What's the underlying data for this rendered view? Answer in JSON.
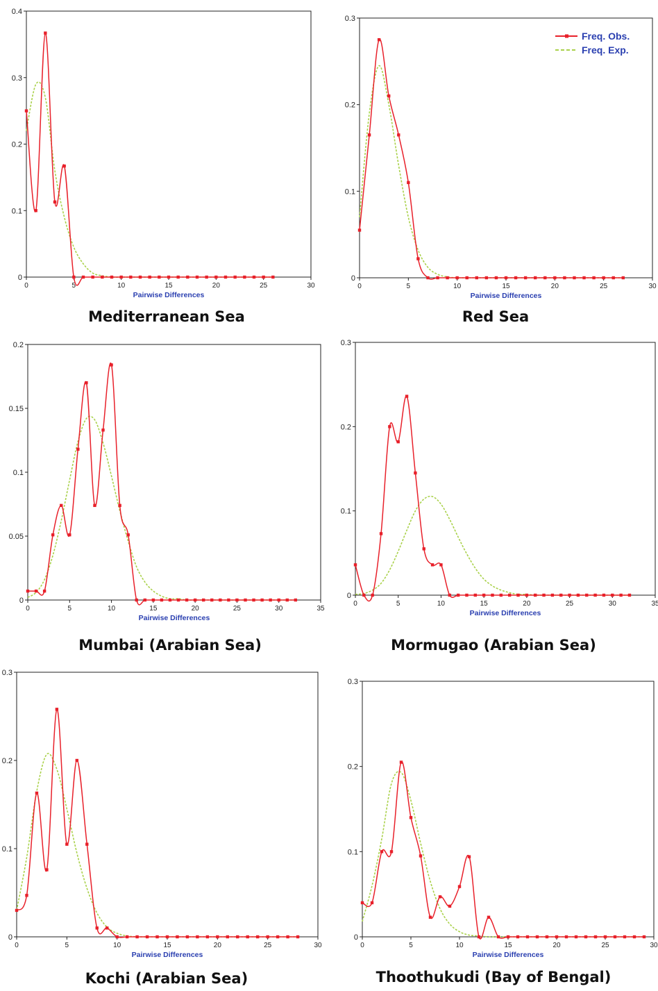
{
  "chart_data": [
    {
      "type": "line",
      "title": "Mediterranean Sea",
      "xlabel": "Pairwise Differences",
      "xlim": [
        0,
        30
      ],
      "ylim": [
        0,
        0.4
      ],
      "xticks": [
        0,
        5,
        10,
        15,
        20,
        25,
        30
      ],
      "yticks": [
        0,
        0.1,
        0.2,
        0.3,
        0.4
      ],
      "ytick_labels": [
        "0",
        "0.1",
        "0.2",
        "0.3",
        "0.4"
      ],
      "legend": null,
      "series": [
        {
          "name": "Freq. Obs.",
          "color": "#e8202a",
          "x": [
            0,
            1,
            2,
            3,
            4,
            5,
            6,
            7,
            8,
            9,
            10,
            11,
            12,
            13,
            14,
            15,
            16,
            17,
            18,
            19,
            20,
            21,
            22,
            23,
            24,
            25,
            26
          ],
          "y": [
            0.25,
            0.1,
            0.367,
            0.113,
            0.167,
            0,
            0,
            0,
            0,
            0,
            0,
            0,
            0,
            0,
            0,
            0,
            0,
            0,
            0,
            0,
            0,
            0,
            0,
            0,
            0,
            0,
            0
          ]
        },
        {
          "name": "Freq. Exp.",
          "color": "#a9d14a",
          "x": [
            0,
            1,
            2,
            3,
            4,
            5,
            6,
            7,
            8,
            9,
            10,
            11,
            12,
            13,
            14,
            15,
            16,
            17,
            18,
            19,
            20,
            21,
            22,
            23,
            24,
            25,
            26
          ],
          "y": [
            0.22,
            0.29,
            0.27,
            0.16,
            0.09,
            0.045,
            0.02,
            0.006,
            0.002,
            0,
            0,
            0,
            0,
            0,
            0,
            0,
            0,
            0,
            0,
            0,
            0,
            0,
            0,
            0,
            0,
            0,
            0
          ]
        }
      ]
    },
    {
      "type": "line",
      "title": "Red Sea",
      "xlabel": "Pairwise Differences",
      "xlim": [
        0,
        30
      ],
      "ylim": [
        0,
        0.3
      ],
      "xticks": [
        0,
        5,
        10,
        15,
        20,
        25,
        30
      ],
      "yticks": [
        0,
        0.1,
        0.2,
        0.3
      ],
      "ytick_labels": [
        "0",
        "0.1",
        "0.2",
        "0.3"
      ],
      "legend": "top-right",
      "series": [
        {
          "name": "Freq. Obs.",
          "color": "#e8202a",
          "x": [
            0,
            1,
            2,
            3,
            4,
            5,
            6,
            7,
            8,
            9,
            10,
            11,
            12,
            13,
            14,
            15,
            16,
            17,
            18,
            19,
            20,
            21,
            22,
            23,
            24,
            25,
            26,
            27
          ],
          "y": [
            0.055,
            0.165,
            0.275,
            0.21,
            0.165,
            0.11,
            0.022,
            0,
            0,
            0,
            0,
            0,
            0,
            0,
            0,
            0,
            0,
            0,
            0,
            0,
            0,
            0,
            0,
            0,
            0,
            0,
            0,
            0
          ]
        },
        {
          "name": "Freq. Exp.",
          "color": "#a9d14a",
          "x": [
            0,
            1,
            2,
            3,
            4,
            5,
            6,
            7,
            8,
            9,
            10,
            11,
            12,
            13,
            14,
            15,
            16,
            17,
            18,
            19,
            20,
            21,
            22,
            23,
            24,
            25,
            26,
            27
          ],
          "y": [
            0.07,
            0.19,
            0.245,
            0.2,
            0.13,
            0.07,
            0.032,
            0.012,
            0.004,
            0.001,
            0,
            0,
            0,
            0,
            0,
            0,
            0,
            0,
            0,
            0,
            0,
            0,
            0,
            0,
            0,
            0,
            0,
            0
          ]
        }
      ]
    },
    {
      "type": "line",
      "title": "Mumbai (Arabian Sea)",
      "xlabel": "Pairwise Differences",
      "xlim": [
        0,
        35
      ],
      "ylim": [
        0,
        0.2
      ],
      "xticks": [
        0,
        5,
        10,
        15,
        20,
        25,
        30,
        35
      ],
      "yticks": [
        0,
        0.05,
        0.1,
        0.15,
        0.2
      ],
      "ytick_labels": [
        "0",
        "0.05",
        "0.1",
        "0.15",
        "0.2"
      ],
      "legend": null,
      "series": [
        {
          "name": "Freq. Obs.",
          "color": "#e8202a",
          "x": [
            0,
            1,
            2,
            3,
            4,
            5,
            6,
            7,
            8,
            9,
            10,
            11,
            12,
            13,
            14,
            15,
            16,
            17,
            18,
            19,
            20,
            21,
            22,
            23,
            24,
            25,
            26,
            27,
            28,
            29,
            30,
            31,
            32
          ],
          "y": [
            0.007,
            0.007,
            0.007,
            0.051,
            0.074,
            0.051,
            0.118,
            0.17,
            0.074,
            0.133,
            0.184,
            0.074,
            0.051,
            0,
            0,
            0,
            0,
            0,
            0,
            0,
            0,
            0,
            0,
            0,
            0,
            0,
            0,
            0,
            0,
            0,
            0,
            0,
            0
          ]
        },
        {
          "name": "Freq. Exp.",
          "color": "#a9d14a",
          "x": [
            0,
            1,
            2,
            3,
            4,
            5,
            6,
            7,
            8,
            9,
            10,
            11,
            12,
            13,
            14,
            15,
            16,
            17,
            18,
            19,
            20,
            21,
            22,
            23,
            24,
            25,
            26,
            27,
            28,
            29,
            30,
            31,
            32
          ],
          "y": [
            0.002,
            0.006,
            0.016,
            0.035,
            0.062,
            0.094,
            0.124,
            0.142,
            0.141,
            0.123,
            0.097,
            0.07,
            0.046,
            0.026,
            0.014,
            0.007,
            0.003,
            0.001,
            0.001,
            0,
            0,
            0,
            0,
            0,
            0,
            0,
            0,
            0,
            0,
            0,
            0,
            0,
            0
          ]
        }
      ]
    },
    {
      "type": "line",
      "title": "Mormugao (Arabian Sea)",
      "xlabel": "Pairwise Differences",
      "xlim": [
        0,
        35
      ],
      "ylim": [
        0,
        0.3
      ],
      "xticks": [
        0,
        5,
        10,
        15,
        20,
        25,
        30,
        35
      ],
      "yticks": [
        0,
        0.1,
        0.2,
        0.3
      ],
      "ytick_labels": [
        "0",
        "0.1",
        "0.2",
        "0.3"
      ],
      "legend": null,
      "series": [
        {
          "name": "Freq. Obs.",
          "color": "#e8202a",
          "x": [
            0,
            1,
            2,
            3,
            4,
            5,
            6,
            7,
            8,
            9,
            10,
            11,
            12,
            13,
            14,
            15,
            16,
            17,
            18,
            19,
            20,
            21,
            22,
            23,
            24,
            25,
            26,
            27,
            28,
            29,
            30,
            31,
            32
          ],
          "y": [
            0.036,
            0,
            0,
            0.073,
            0.2,
            0.182,
            0.236,
            0.145,
            0.055,
            0.036,
            0.036,
            0,
            0,
            0,
            0,
            0,
            0,
            0,
            0,
            0,
            0,
            0,
            0,
            0,
            0,
            0,
            0,
            0,
            0,
            0,
            0,
            0,
            0
          ]
        },
        {
          "name": "Freq. Exp.",
          "color": "#a9d14a",
          "x": [
            0,
            1,
            2,
            3,
            4,
            5,
            6,
            7,
            8,
            9,
            10,
            11,
            12,
            13,
            14,
            15,
            16,
            17,
            18,
            19,
            20,
            21,
            22,
            23,
            24,
            25,
            26,
            27,
            28,
            29,
            30,
            31,
            32
          ],
          "y": [
            0.001,
            0.002,
            0.006,
            0.014,
            0.03,
            0.052,
            0.077,
            0.1,
            0.114,
            0.117,
            0.108,
            0.09,
            0.069,
            0.049,
            0.032,
            0.019,
            0.011,
            0.006,
            0.003,
            0.001,
            0.001,
            0,
            0,
            0,
            0,
            0,
            0,
            0,
            0,
            0,
            0,
            0,
            0
          ]
        }
      ]
    },
    {
      "type": "line",
      "title": "Kochi (Arabian Sea)",
      "xlabel": "Pairwise Differences",
      "xlim": [
        0,
        30
      ],
      "ylim": [
        0,
        0.3
      ],
      "xticks": [
        0,
        5,
        10,
        15,
        20,
        25,
        30
      ],
      "yticks": [
        0,
        0.1,
        0.2,
        0.3
      ],
      "ytick_labels": [
        "0",
        "0.1",
        "0.2",
        "0.3"
      ],
      "legend": null,
      "series": [
        {
          "name": "Freq. Obs.",
          "color": "#e8202a",
          "x": [
            0,
            1,
            2,
            3,
            4,
            5,
            6,
            7,
            8,
            9,
            10,
            11,
            12,
            13,
            14,
            15,
            16,
            17,
            18,
            19,
            20,
            21,
            22,
            23,
            24,
            25,
            26,
            27,
            28
          ],
          "y": [
            0.03,
            0.047,
            0.163,
            0.076,
            0.258,
            0.105,
            0.2,
            0.105,
            0.01,
            0.01,
            0,
            0,
            0,
            0,
            0,
            0,
            0,
            0,
            0,
            0,
            0,
            0,
            0,
            0,
            0,
            0,
            0,
            0,
            0
          ]
        },
        {
          "name": "Freq. Exp.",
          "color": "#a9d14a",
          "x": [
            0,
            1,
            2,
            3,
            4,
            5,
            6,
            7,
            8,
            9,
            10,
            11,
            12,
            13,
            14,
            15,
            16,
            17,
            18,
            19,
            20,
            21,
            22,
            23,
            24,
            25,
            26,
            27,
            28
          ],
          "y": [
            0.03,
            0.09,
            0.165,
            0.207,
            0.19,
            0.145,
            0.095,
            0.055,
            0.027,
            0.011,
            0.004,
            0.001,
            0,
            0,
            0,
            0,
            0,
            0,
            0,
            0,
            0,
            0,
            0,
            0,
            0,
            0,
            0,
            0,
            0
          ]
        }
      ]
    },
    {
      "type": "line",
      "title": "Thoothukudi (Bay of Bengal)",
      "xlabel": "Pairwise Differences",
      "xlim": [
        0,
        30
      ],
      "ylim": [
        0,
        0.3
      ],
      "xticks": [
        0,
        5,
        10,
        15,
        20,
        25,
        30
      ],
      "yticks": [
        0,
        0.1,
        0.2,
        0.3
      ],
      "ytick_labels": [
        "0",
        "0.1",
        "0.2",
        "0.3"
      ],
      "legend": null,
      "series": [
        {
          "name": "Freq. Obs.",
          "color": "#e8202a",
          "x": [
            0,
            1,
            2,
            3,
            4,
            5,
            6,
            7,
            8,
            9,
            10,
            11,
            12,
            13,
            14,
            15,
            16,
            17,
            18,
            19,
            20,
            21,
            22,
            23,
            24,
            25,
            26,
            27,
            28,
            29
          ],
          "y": [
            0.04,
            0.04,
            0.1,
            0.1,
            0.205,
            0.14,
            0.095,
            0.023,
            0.047,
            0.036,
            0.059,
            0.094,
            0,
            0.023,
            0,
            0,
            0,
            0,
            0,
            0,
            0,
            0,
            0,
            0,
            0,
            0,
            0,
            0,
            0,
            0
          ]
        },
        {
          "name": "Freq. Exp.",
          "color": "#a9d14a",
          "x": [
            0,
            1,
            2,
            3,
            4,
            5,
            6,
            7,
            8,
            9,
            10,
            11,
            12,
            13,
            14,
            15,
            16,
            17,
            18,
            19,
            20,
            21,
            22,
            23,
            24,
            25,
            26,
            27,
            28,
            29
          ],
          "y": [
            0.018,
            0.06,
            0.115,
            0.18,
            0.193,
            0.16,
            0.11,
            0.065,
            0.033,
            0.015,
            0.006,
            0.002,
            0.001,
            0,
            0,
            0,
            0,
            0,
            0,
            0,
            0,
            0,
            0,
            0,
            0,
            0,
            0,
            0,
            0,
            0
          ]
        }
      ]
    }
  ]
}
